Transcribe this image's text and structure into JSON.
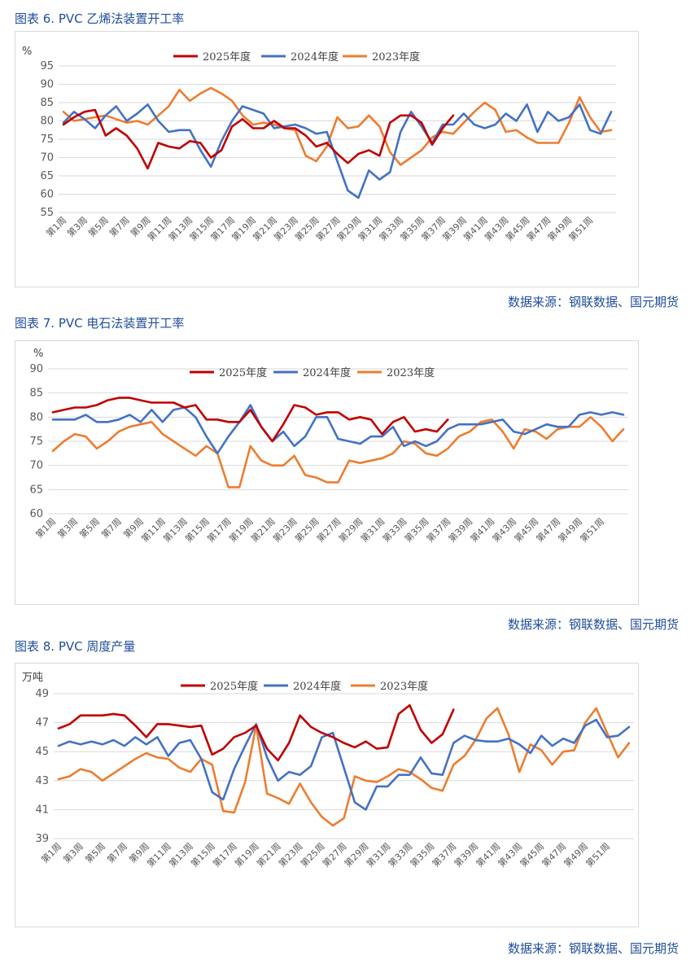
{
  "colors": {
    "s2025": "#c00000",
    "s2024": "#4472c4",
    "s2023": "#ed7d31",
    "title": "#1f4e9a",
    "grid": "#d9d9d9"
  },
  "figures": [
    {
      "title": "图表 6. PVC 乙烯法装置开工率",
      "source": "数据来源：钢联数据、国元期货"
    },
    {
      "title": "图表 7. PVC 电石法装置开工率",
      "source": "数据来源：钢联数据、国元期货"
    },
    {
      "title": "图表 8. PVC 周度产量",
      "source": "数据来源：钢联数据、国元期货"
    }
  ],
  "chart_data": [
    {
      "type": "line",
      "title": "图表 6. PVC 乙烯法装置开工率",
      "unit": "%",
      "ylim": [
        55,
        95
      ],
      "yticks": [
        55,
        60,
        65,
        70,
        75,
        80,
        85,
        90,
        95
      ],
      "x_tick_labels": [
        "第1周",
        "第3周",
        "第5周",
        "第7周",
        "第9周",
        "第11周",
        "第13周",
        "第15周",
        "第17周",
        "第19周",
        "第21周",
        "第23周",
        "第25周",
        "第27周",
        "第29周",
        "第31周",
        "第33周",
        "第35周",
        "第37周",
        "第39周",
        "第41周",
        "第43周",
        "第45周",
        "第47周",
        "第49周",
        "第51周"
      ],
      "series": [
        {
          "name": "2025年度",
          "values": [
            79,
            81,
            82.5,
            83,
            76,
            78,
            76,
            72.5,
            67,
            74,
            73,
            72.5,
            74.5,
            74,
            70,
            72,
            78.5,
            80.5,
            78,
            78,
            80,
            78,
            78,
            76,
            73,
            74,
            71,
            68.5,
            71,
            72,
            70.5,
            79.5,
            81.5,
            81.5,
            79.5,
            73.5,
            78,
            81.5
          ]
        },
        {
          "name": "2024年度",
          "values": [
            79.5,
            82.5,
            80.5,
            78,
            81.5,
            84,
            80,
            82,
            84.5,
            80,
            77,
            77.5,
            77.5,
            72,
            67.5,
            74.5,
            80,
            84,
            83,
            82,
            78,
            78.5,
            79,
            78,
            76.5,
            77,
            69,
            61,
            59,
            66.5,
            64,
            66,
            77,
            82.5,
            78.5,
            74,
            79,
            79,
            82,
            79,
            78,
            79,
            82,
            80,
            84.5,
            77,
            82.5,
            80,
            81,
            84.5,
            77.5,
            76.5,
            82.5
          ]
        },
        {
          "name": "2023年度",
          "values": [
            82.5,
            80,
            80.5,
            81,
            81.5,
            80.5,
            79.5,
            80,
            79,
            81.5,
            84,
            88.5,
            85.5,
            87.5,
            89,
            87.5,
            85.5,
            81.5,
            79,
            79.5,
            79,
            78,
            77.5,
            70.5,
            69,
            73,
            81,
            78,
            78.5,
            81.5,
            78.5,
            71.5,
            68,
            70,
            72,
            75.5,
            77,
            76.5,
            79.5,
            82.5,
            85,
            83,
            77,
            77.5,
            75.5,
            74,
            74,
            74,
            79.5,
            86.5,
            81,
            77,
            77.5
          ]
        }
      ]
    },
    {
      "type": "line",
      "title": "图表 7. PVC 电石法装置开工率",
      "unit": "%",
      "ylim": [
        60,
        90
      ],
      "yticks": [
        60,
        65,
        70,
        75,
        80,
        85,
        90
      ],
      "x_tick_labels": [
        "第1周",
        "第3周",
        "第5周",
        "第7周",
        "第9周",
        "第11周",
        "第13周",
        "第15周",
        "第17周",
        "第19周",
        "第21周",
        "第23周",
        "第25周",
        "第27周",
        "第29周",
        "第31周",
        "第33周",
        "第35周",
        "第37周",
        "第39周",
        "第41周",
        "第43周",
        "第45周",
        "第47周",
        "第49周",
        "第51周"
      ],
      "series": [
        {
          "name": "2025年度",
          "values": [
            81,
            81.5,
            82,
            82,
            82.5,
            83.5,
            84,
            84,
            83.5,
            83,
            83,
            83,
            82,
            82.5,
            79.5,
            79.5,
            79,
            79,
            81.5,
            78,
            75,
            78.5,
            82.5,
            82,
            80.5,
            81,
            81,
            79.5,
            80,
            79.5,
            76.5,
            79,
            80,
            77,
            77.5,
            77,
            79.5
          ]
        },
        {
          "name": "2024年度",
          "values": [
            79.5,
            79.5,
            79.5,
            80.5,
            79,
            79,
            79.5,
            80.5,
            79,
            81.5,
            79,
            81.5,
            82,
            80,
            76,
            72.5,
            76,
            79,
            82.5,
            78,
            75,
            77,
            74,
            76,
            80,
            80,
            75.5,
            75,
            74.5,
            76,
            76,
            78,
            74,
            75,
            74,
            75,
            77.5,
            78.5,
            78.5,
            78.5,
            79,
            79.5,
            77,
            76.5,
            77.5,
            78.5,
            78,
            78,
            80.5,
            81,
            80.5,
            81,
            80.5
          ]
        },
        {
          "name": "2023年度",
          "values": [
            73,
            75,
            76.5,
            76,
            73.5,
            75,
            77,
            78,
            78.5,
            79,
            76.5,
            75,
            73.5,
            72,
            74,
            72.5,
            65.5,
            65.5,
            74,
            71,
            70,
            70,
            72,
            68,
            67.5,
            66.5,
            66.5,
            71,
            70.5,
            71,
            71.5,
            72.5,
            75,
            74.5,
            72.5,
            72,
            73.5,
            76,
            77,
            79,
            79.5,
            77,
            73.5,
            77.5,
            77,
            75.5,
            77.5,
            78,
            78,
            80,
            78,
            75,
            77.5
          ]
        }
      ]
    },
    {
      "type": "line",
      "title": "图表 8. PVC 周度产量",
      "unit": "万吨",
      "ylim": [
        39,
        49
      ],
      "yticks": [
        39,
        41,
        43,
        45,
        47,
        49
      ],
      "x_tick_labels": [
        "第1周",
        "第3周",
        "第5周",
        "第7周",
        "第9周",
        "第11周",
        "第13周",
        "第15周",
        "第17周",
        "第19周",
        "第21周",
        "第23周",
        "第25周",
        "第27周",
        "第29周",
        "第31周",
        "第33周",
        "第35周",
        "第37周",
        "第39周",
        "第41周",
        "第43周",
        "第45周",
        "第47周",
        "第49周",
        "第51周"
      ],
      "series": [
        {
          "name": "2025年度",
          "values": [
            46.6,
            46.9,
            47.5,
            47.5,
            47.5,
            47.6,
            47.5,
            46.8,
            46,
            46.9,
            46.9,
            46.8,
            46.7,
            46.8,
            44.8,
            45.2,
            46,
            46.3,
            46.8,
            45.2,
            44.4,
            45.6,
            47.5,
            46.7,
            46.3,
            46,
            45.6,
            45.3,
            45.7,
            45.2,
            45.3,
            47.6,
            48.2,
            46.5,
            45.6,
            46.2,
            47.9
          ]
        },
        {
          "name": "2024年度",
          "values": [
            45.4,
            45.7,
            45.5,
            45.7,
            45.5,
            45.8,
            45.4,
            46,
            45.5,
            46,
            44.7,
            45.6,
            45.8,
            44.5,
            42.2,
            41.7,
            43.8,
            45.4,
            46.9,
            44.6,
            43,
            43.6,
            43.4,
            44,
            46,
            46.3,
            43.9,
            41.5,
            41,
            42.6,
            42.6,
            43.4,
            43.4,
            44.6,
            43.5,
            43.4,
            45.6,
            46.1,
            45.8,
            45.7,
            45.7,
            45.9,
            45.5,
            44.9,
            46.1,
            45.4,
            45.9,
            45.6,
            46.8,
            47.2,
            46,
            46.1,
            46.7
          ]
        },
        {
          "name": "2023年度",
          "values": [
            43.1,
            43.3,
            43.8,
            43.6,
            43,
            43.5,
            44,
            44.5,
            44.9,
            44.6,
            44.5,
            43.9,
            43.6,
            44.5,
            44.1,
            40.9,
            40.8,
            42.9,
            46.8,
            42.1,
            41.8,
            41.4,
            42.8,
            41.5,
            40.5,
            39.9,
            40.4,
            43.3,
            43,
            42.9,
            43.3,
            43.8,
            43.6,
            43.1,
            42.5,
            42.3,
            44.1,
            44.7,
            45.8,
            47.3,
            48,
            46.2,
            43.6,
            45.5,
            45.1,
            44.1,
            45,
            45.1,
            47,
            48,
            46.3,
            44.6,
            45.6
          ]
        }
      ]
    }
  ]
}
